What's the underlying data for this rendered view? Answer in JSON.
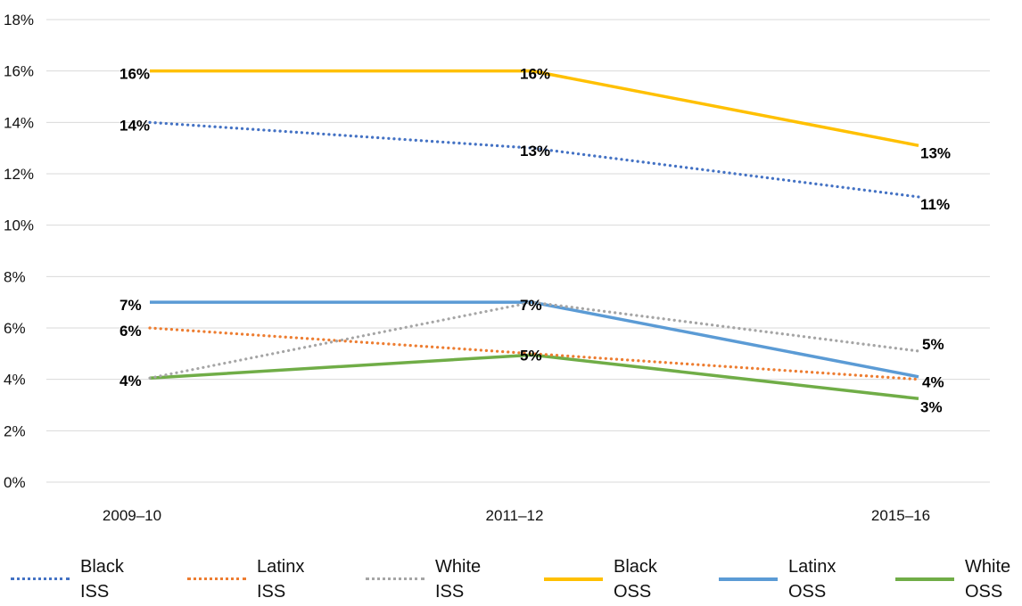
{
  "chart_data": {
    "type": "line",
    "categories": [
      "2009–10",
      "2011–12",
      "2015–16"
    ],
    "ylim": [
      0,
      18
    ],
    "yticks": [
      0,
      2,
      4,
      6,
      8,
      10,
      12,
      14,
      16,
      18
    ],
    "ytick_labels": [
      "0%",
      "2%",
      "4%",
      "6%",
      "8%",
      "10%",
      "12%",
      "14%",
      "16%",
      "18%"
    ],
    "grid": true,
    "legend_position": "bottom",
    "series": [
      {
        "name": "Black ISS",
        "values": [
          14,
          13,
          11.1
        ],
        "labels": [
          "14%",
          "13%",
          "11%"
        ],
        "color": "#4472C4",
        "dash": "dotted"
      },
      {
        "name": "Latinx ISS",
        "values": [
          6,
          5,
          4
        ],
        "labels": [
          "6%",
          "",
          "4%"
        ],
        "color": "#ED7D31",
        "dash": "dotted"
      },
      {
        "name": "White ISS",
        "values": [
          4.05,
          7,
          5.1
        ],
        "labels": [
          "",
          "",
          "5%"
        ],
        "color": "#A5A5A5",
        "dash": "dotted"
      },
      {
        "name": "Black OSS",
        "values": [
          16,
          16,
          13.1
        ],
        "labels": [
          "16%",
          "16%",
          "13%"
        ],
        "color": "#FFC000",
        "dash": "solid"
      },
      {
        "name": "Latinx OSS",
        "values": [
          7,
          7,
          4.1
        ],
        "labels": [
          "7%",
          "7%",
          ""
        ],
        "color": "#5B9BD5",
        "dash": "solid"
      },
      {
        "name": "White OSS",
        "values": [
          4.05,
          4.95,
          3.25
        ],
        "labels": [
          "4%",
          "5%",
          "3%"
        ],
        "color": "#70AD47",
        "dash": "solid"
      }
    ]
  }
}
